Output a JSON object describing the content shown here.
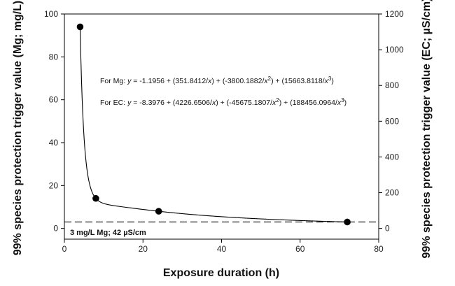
{
  "chart_data": {
    "type": "scatter",
    "xlabel": "Exposure duration (h)",
    "ylabel_left": "99% species protection trigger value (Mg; mg/L)",
    "ylabel_right": "99% species protection trigger value (EC; µS/cm)",
    "xlim": [
      0,
      80
    ],
    "ylim_left": [
      -5,
      100
    ],
    "ylim_right": [
      -60,
      1200
    ],
    "x_ticks": [
      "0",
      "20",
      "40",
      "60",
      "80"
    ],
    "y_left_ticks": [
      "0",
      "20",
      "40",
      "60",
      "80",
      "100"
    ],
    "y_right_ticks": [
      "0",
      "200",
      "400",
      "600",
      "800",
      "1000",
      "1200"
    ],
    "points": [
      {
        "x": 4,
        "y": 94
      },
      {
        "x": 8,
        "y": 14
      },
      {
        "x": 24,
        "y": 8
      },
      {
        "x": 72,
        "y": 3
      }
    ],
    "fit": {
      "a": -1.1956,
      "b": 351.8412,
      "c": -3800.1882,
      "d": 15663.8118
    },
    "equations": [
      {
        "prefix": "For Mg: ",
        "var": "y",
        "body": " = -1.1956 + (351.8412/",
        "p1": "x",
        "p1b": ") + (-3800.1882/",
        "p2": "x",
        "e2": "2",
        "p2b": ") + (15663.8118/",
        "p3": "x",
        "e3": "3",
        "end": ")"
      },
      {
        "prefix": "For EC: ",
        "var": "y",
        "body": " = -8.3976 + (4226.6506/",
        "p1": "x",
        "p1b": ") + (-45675.1807/",
        "p2": "x",
        "e2": "2",
        "p2b": ") + (188456.0964/",
        "p3": "x",
        "e3": "3",
        "end": ")"
      }
    ],
    "reference_line": {
      "y": 3,
      "label": "3 mg/L Mg; 42 µS/cm"
    },
    "grid": false
  }
}
